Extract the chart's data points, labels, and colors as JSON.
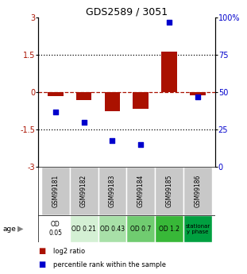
{
  "title": "GDS2589 / 3051",
  "samples": [
    "GSM99181",
    "GSM99182",
    "GSM99183",
    "GSM99184",
    "GSM99185",
    "GSM99186"
  ],
  "log2_ratio": [
    -0.15,
    -0.32,
    -0.75,
    -0.65,
    1.65,
    -0.1
  ],
  "percentile_rank": [
    37,
    30,
    18,
    15,
    97,
    47
  ],
  "ylim_left": [
    -3,
    3
  ],
  "ylim_right": [
    0,
    100
  ],
  "yticks_left": [
    -3,
    -1.5,
    0,
    1.5,
    3
  ],
  "ytick_labels_left": [
    "-3",
    "-1.5",
    "0",
    "1.5",
    "3"
  ],
  "yticks_right": [
    0,
    25,
    50,
    75,
    100
  ],
  "ytick_labels_right": [
    "0",
    "25",
    "50",
    "75",
    "100%"
  ],
  "bar_color": "#aa1100",
  "dot_color": "#0000cc",
  "bar_width": 0.55,
  "dot_size": 22,
  "age_labels": [
    "OD\n0.05",
    "OD 0.21",
    "OD 0.43",
    "OD 0.7",
    "OD 1.2",
    "stationar\ny phase"
  ],
  "age_colors": [
    "#ffffff",
    "#d4f0d4",
    "#a8e0a8",
    "#70cc70",
    "#38b838",
    "#00a040"
  ],
  "gsm_bg_color": "#c8c8c8",
  "legend_entries": [
    "log2 ratio",
    "percentile rank within the sample"
  ],
  "legend_colors": [
    "#aa1100",
    "#0000cc"
  ]
}
